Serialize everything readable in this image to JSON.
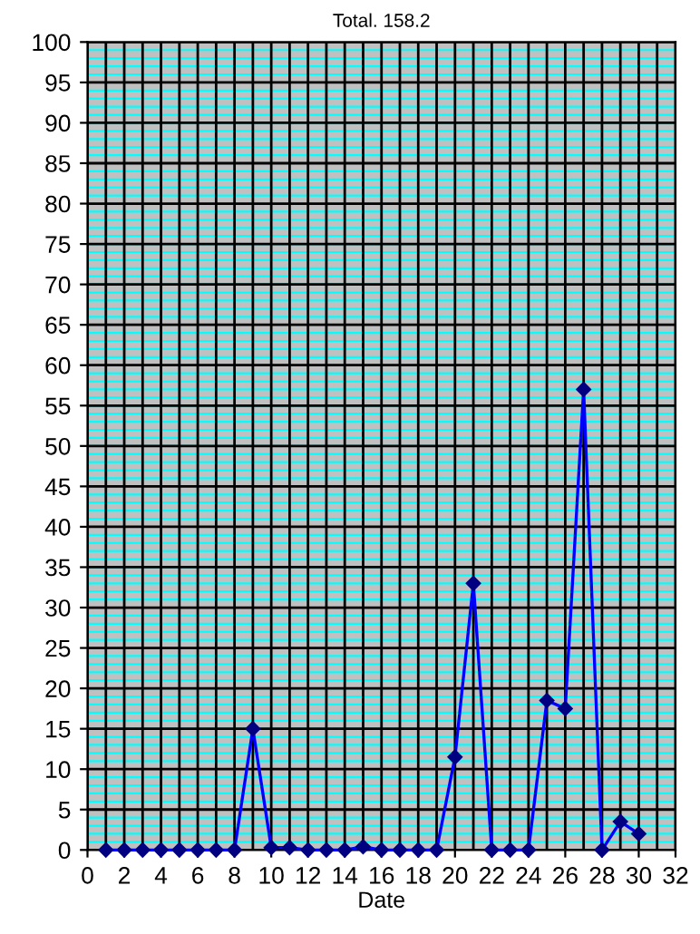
{
  "chart_data": {
    "type": "line",
    "title": "Total. 158.2",
    "xlabel": "Date",
    "x": [
      1,
      2,
      3,
      4,
      5,
      6,
      7,
      8,
      9,
      10,
      11,
      12,
      13,
      14,
      15,
      16,
      17,
      18,
      19,
      20,
      21,
      22,
      23,
      24,
      25,
      26,
      27,
      28,
      29,
      30
    ],
    "series": [
      {
        "color": "#0000ff",
        "values": [
          0,
          0,
          0,
          0,
          0,
          0,
          0,
          0,
          15,
          0.3,
          0.3,
          0,
          0,
          0,
          0.4,
          0,
          0,
          0,
          0,
          11.5,
          33,
          0,
          0,
          0,
          18.5,
          17.5,
          57,
          0,
          3.5,
          2
        ]
      }
    ],
    "xlim": [
      0,
      32
    ],
    "xticks": [
      0,
      2,
      4,
      6,
      8,
      10,
      12,
      14,
      16,
      18,
      20,
      22,
      24,
      26,
      28,
      30,
      32
    ],
    "ylim": [
      0,
      100
    ],
    "yticks": [
      0,
      5,
      10,
      15,
      20,
      25,
      30,
      35,
      40,
      45,
      50,
      55,
      60,
      65,
      70,
      75,
      80,
      85,
      90,
      95,
      100
    ],
    "grid": true,
    "marker": "diamond",
    "line_style": "solid",
    "legend": false
  }
}
